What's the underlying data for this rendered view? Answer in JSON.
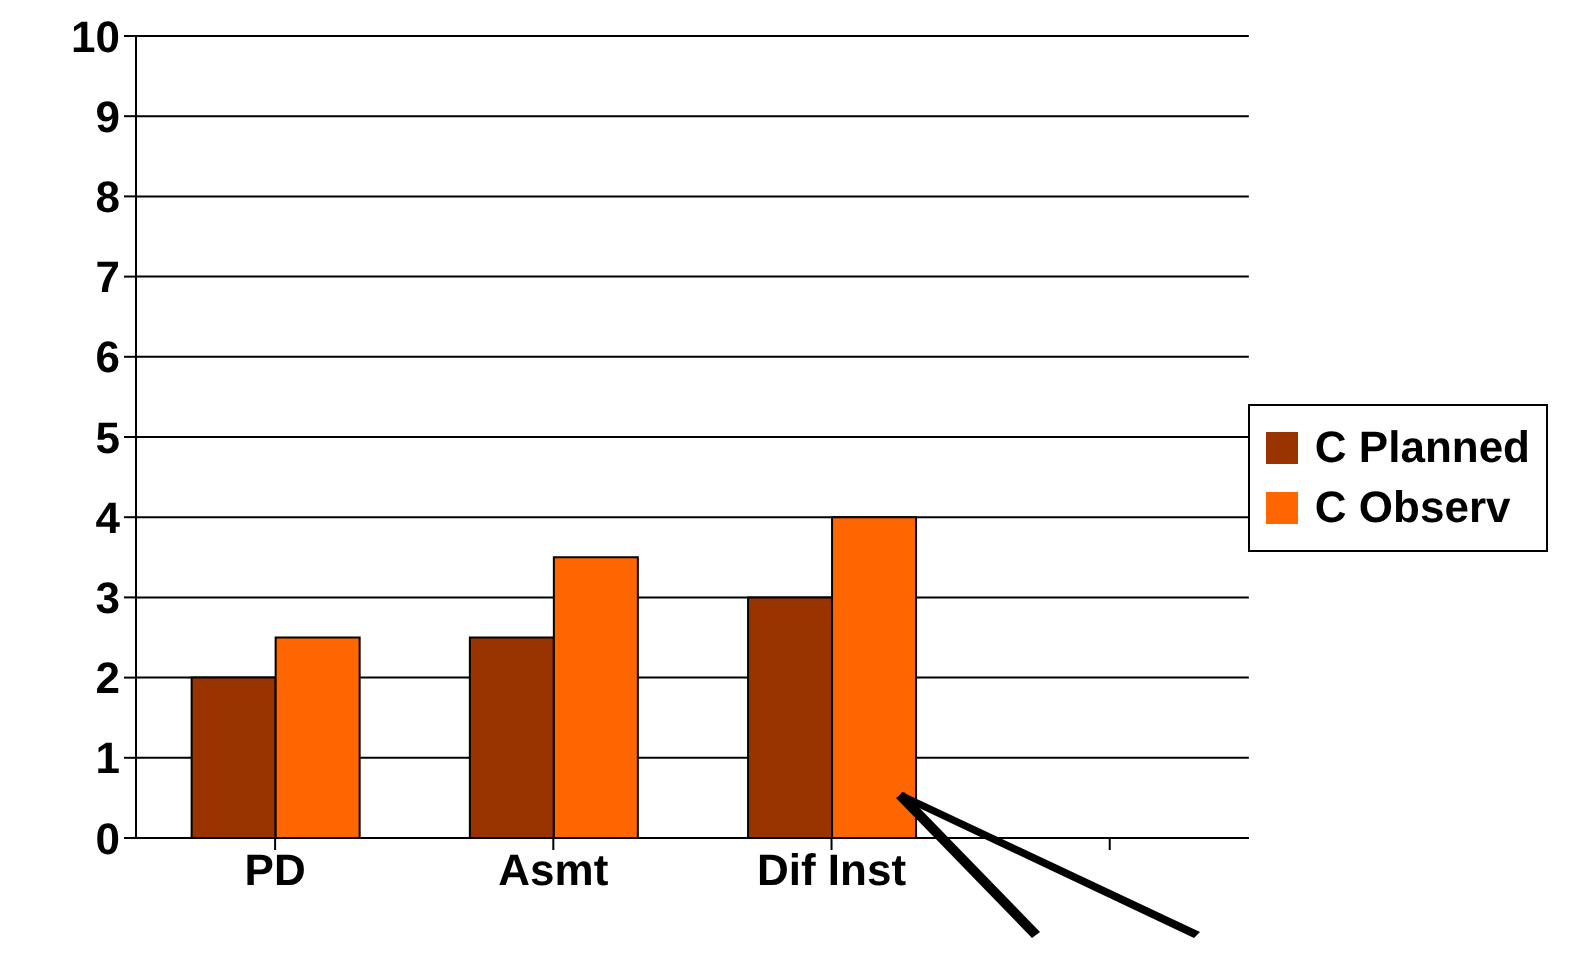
{
  "chart_data": {
    "type": "bar",
    "categories": [
      "PD",
      "Asmt",
      "Dif Inst",
      null
    ],
    "series": [
      {
        "name": "C Planned",
        "color": "#993300",
        "values": [
          2,
          2.5,
          3,
          null
        ]
      },
      {
        "name": "C Observ",
        "color": "#ff6600",
        "values": [
          2.5,
          3.5,
          4,
          null
        ]
      }
    ],
    "ylim": [
      0,
      10
    ],
    "yticks": [
      0,
      1,
      2,
      3,
      4,
      5,
      6,
      7,
      8,
      9,
      10
    ],
    "grid": "y",
    "legend": "right"
  }
}
